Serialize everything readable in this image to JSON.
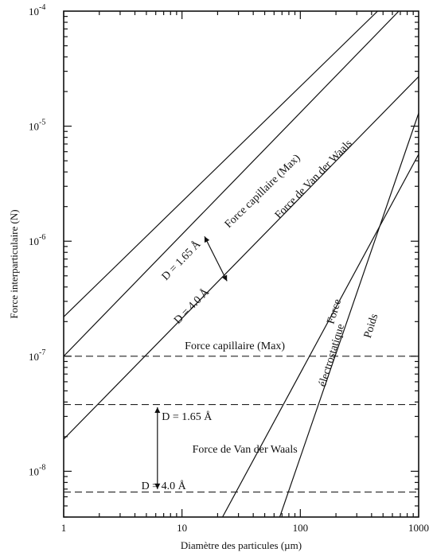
{
  "chart_data": {
    "type": "line",
    "x_scale": "log",
    "y_scale": "log",
    "xlim": [
      1,
      1000
    ],
    "ylim": [
      4e-09,
      0.0001
    ],
    "xlabel": "Diamètre des particules (µm)",
    "ylabel": "Force interparticulaire (N)",
    "x_ticks": [
      {
        "value": 1,
        "label": "1"
      },
      {
        "value": 10,
        "label": "10"
      },
      {
        "value": 100,
        "label": "100"
      },
      {
        "value": 1000,
        "label": "1000"
      }
    ],
    "y_ticks": [
      {
        "value": 1e-08,
        "base": "10",
        "exp": "-8"
      },
      {
        "value": 1e-07,
        "base": "10",
        "exp": "-7"
      },
      {
        "value": 1e-06,
        "base": "10",
        "exp": "-6"
      },
      {
        "value": 1e-05,
        "base": "10",
        "exp": "-5"
      },
      {
        "value": 0.0001,
        "base": "10",
        "exp": "-4"
      }
    ],
    "grid": false,
    "series": [
      {
        "key": "cap_line",
        "style": "solid",
        "points": [
          [
            1,
            2.2e-07
          ],
          [
            450,
            0.0001
          ]
        ]
      },
      {
        "key": "vdw165_line",
        "style": "solid",
        "points": [
          [
            1,
            1e-07
          ],
          [
            680,
            0.0001
          ]
        ]
      },
      {
        "key": "vdw40_line",
        "style": "solid",
        "points": [
          [
            1,
            1.9e-08
          ],
          [
            1000,
            2.7e-05
          ]
        ]
      },
      {
        "key": "elec_line",
        "style": "solid",
        "points": [
          [
            22,
            4e-09
          ],
          [
            1000,
            5.7e-06
          ]
        ]
      },
      {
        "key": "poids_line",
        "style": "solid",
        "points": [
          [
            67,
            4e-09
          ],
          [
            1000,
            1.3e-05
          ]
        ]
      },
      {
        "key": "cap_flat",
        "style": "dashed",
        "points": [
          [
            1,
            1e-07
          ],
          [
            1000,
            1e-07
          ]
        ]
      },
      {
        "key": "vdw165_flat",
        "style": "dashed",
        "points": [
          [
            1,
            3.8e-08
          ],
          [
            1000,
            3.8e-08
          ]
        ]
      },
      {
        "key": "vdw40_flat",
        "style": "dashed",
        "points": [
          [
            1,
            6.6e-09
          ],
          [
            1000,
            6.6e-09
          ]
        ]
      }
    ],
    "annotations": [
      {
        "key": "cap_slanted",
        "text": "Force capillaire (Max)",
        "x": 50,
        "y": 2.6e-06,
        "along": "cap_line"
      },
      {
        "key": "vdw_slanted",
        "text": "Force de Van der Waals",
        "x": 135,
        "y": 3.3e-06,
        "along": "vdw165_line"
      },
      {
        "key": "d165_slanted",
        "text": "D = 1.65 Å",
        "x": 10.3,
        "y": 6.5e-07,
        "along": "vdw165_line"
      },
      {
        "key": "d40_slanted",
        "text": "D = 4.0 Å",
        "x": 12.6,
        "y": 2.6e-07,
        "along": "vdw40_line"
      },
      {
        "key": "elec_force",
        "text": "Force",
        "x": 205,
        "y": 2.4e-07,
        "angle": -73
      },
      {
        "key": "elec_elec",
        "text": "électrostatique",
        "x": 195,
        "y": 1e-07,
        "angle": -73
      },
      {
        "key": "poids_text",
        "text": "Poids",
        "x": 420,
        "y": 1.8e-07,
        "angle": -73
      },
      {
        "key": "cap_flat_text",
        "text": "Force capillaire (Max)",
        "x": 28,
        "y": 1.15e-07
      },
      {
        "key": "d165_flat_text",
        "text": "D = 1.65 Å",
        "x": 11,
        "y": 2.8e-08
      },
      {
        "key": "vdw_flat_text",
        "text": "Force de Van der Waals",
        "x": 34,
        "y": 1.45e-08
      },
      {
        "key": "d40_flat_text",
        "text": "D = 4.0 Å",
        "x": 7,
        "y": 7e-09
      }
    ],
    "arrows": [
      {
        "key": "arrow_slanted",
        "from": [
          15.5,
          1.1e-06
        ],
        "to": [
          24,
          4.5e-07
        ]
      },
      {
        "key": "arrow_flat",
        "from": [
          6.2,
          3.6e-08
        ],
        "to": [
          6.2,
          7e-09
        ]
      }
    ]
  }
}
